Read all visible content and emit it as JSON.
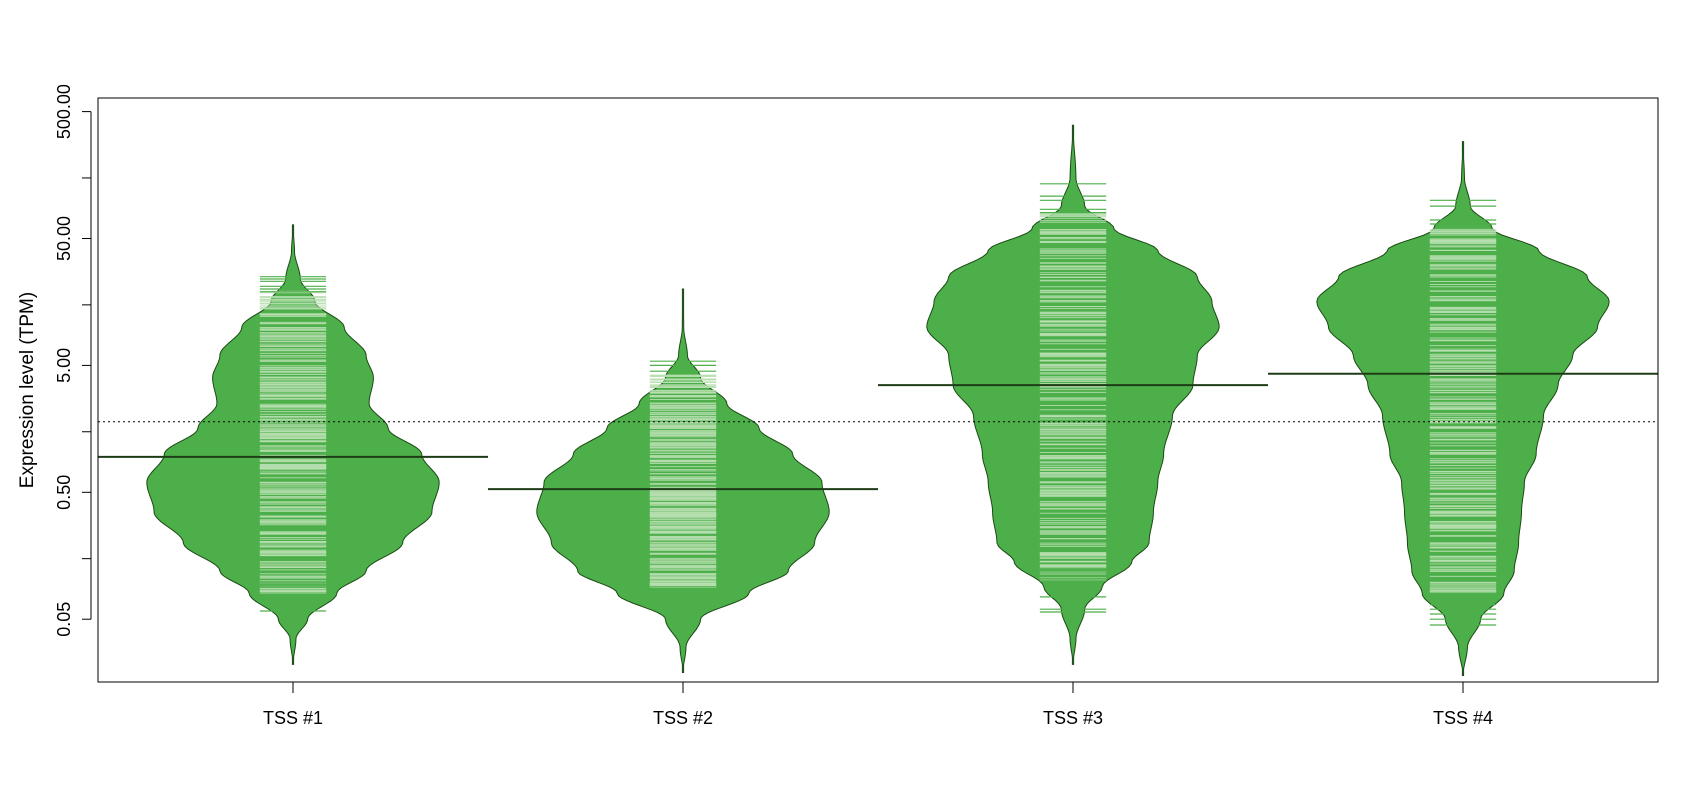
{
  "chart_data": {
    "type": "beanplot",
    "title": "",
    "xlabel": "",
    "ylabel": "Expression level (TPM)",
    "y_scale": "log10",
    "ylim": [
      0.016,
      640
    ],
    "y_ticks": [
      0.05,
      0.5,
      5,
      50,
      500
    ],
    "y_tick_labels": [
      "0.05",
      "0.50",
      "5.00",
      "50.00",
      "500.00"
    ],
    "y_minor_ticks": [
      0.15,
      1.5,
      15,
      150
    ],
    "overall_reference_line": 1.8,
    "categories": [
      "TSS #1",
      "TSS #2",
      "TSS #3",
      "TSS #4"
    ],
    "series": [
      {
        "category": "TSS #1",
        "median": 0.95,
        "min": 0.022,
        "max": 64,
        "density_profile": [
          [
            0.022,
            0
          ],
          [
            0.035,
            0.02
          ],
          [
            0.05,
            0.1
          ],
          [
            0.08,
            0.3
          ],
          [
            0.12,
            0.5
          ],
          [
            0.2,
            0.75
          ],
          [
            0.35,
            0.95
          ],
          [
            0.6,
            1.0
          ],
          [
            1.0,
            0.88
          ],
          [
            1.6,
            0.65
          ],
          [
            2.5,
            0.52
          ],
          [
            4.0,
            0.55
          ],
          [
            6.0,
            0.5
          ],
          [
            10,
            0.35
          ],
          [
            16,
            0.15
          ],
          [
            24,
            0.05
          ],
          [
            40,
            0.01
          ],
          [
            64,
            0
          ]
        ],
        "dense_range": [
          0.08,
          20
        ],
        "tail_points": [
          0.058,
          0.09,
          0.095,
          19,
          20,
          21,
          23,
          24,
          25
        ]
      },
      {
        "category": "TSS #2",
        "median": 0.53,
        "min": 0.019,
        "max": 20,
        "density_profile": [
          [
            0.019,
            0
          ],
          [
            0.03,
            0.02
          ],
          [
            0.05,
            0.12
          ],
          [
            0.08,
            0.45
          ],
          [
            0.12,
            0.72
          ],
          [
            0.2,
            0.9
          ],
          [
            0.35,
            1.0
          ],
          [
            0.6,
            0.95
          ],
          [
            1.0,
            0.75
          ],
          [
            1.6,
            0.52
          ],
          [
            2.5,
            0.3
          ],
          [
            4.0,
            0.12
          ],
          [
            6.0,
            0.03
          ],
          [
            10,
            0.005
          ],
          [
            20,
            0
          ]
        ],
        "dense_range": [
          0.085,
          4.2
        ],
        "tail_points": [
          0.068,
          0.082,
          0.09,
          4.5,
          5.0,
          5.4
        ]
      },
      {
        "category": "TSS #3",
        "median": 3.5,
        "min": 0.022,
        "max": 390,
        "density_profile": [
          [
            0.022,
            0
          ],
          [
            0.035,
            0.02
          ],
          [
            0.06,
            0.08
          ],
          [
            0.09,
            0.2
          ],
          [
            0.14,
            0.4
          ],
          [
            0.2,
            0.52
          ],
          [
            0.35,
            0.55
          ],
          [
            0.6,
            0.58
          ],
          [
            1.0,
            0.62
          ],
          [
            2.0,
            0.68
          ],
          [
            3.5,
            0.82
          ],
          [
            6.0,
            0.85
          ],
          [
            10,
            1.0
          ],
          [
            16,
            0.95
          ],
          [
            25,
            0.85
          ],
          [
            40,
            0.58
          ],
          [
            60,
            0.28
          ],
          [
            90,
            0.08
          ],
          [
            150,
            0.02
          ],
          [
            390,
            0
          ]
        ],
        "dense_range": [
          0.1,
          80
        ],
        "tail_points": [
          0.057,
          0.06,
          0.075,
          0.1,
          0.105,
          0.12,
          0.125,
          80,
          85,
          100,
          108,
          135
        ]
      },
      {
        "category": "TSS #4",
        "median": 4.3,
        "min": 0.018,
        "max": 290,
        "density_profile": [
          [
            0.018,
            0
          ],
          [
            0.03,
            0.03
          ],
          [
            0.05,
            0.12
          ],
          [
            0.08,
            0.28
          ],
          [
            0.12,
            0.35
          ],
          [
            0.2,
            0.38
          ],
          [
            0.35,
            0.4
          ],
          [
            0.6,
            0.42
          ],
          [
            1.0,
            0.5
          ],
          [
            2.0,
            0.55
          ],
          [
            3.5,
            0.65
          ],
          [
            6.0,
            0.75
          ],
          [
            10,
            0.92
          ],
          [
            16,
            1.0
          ],
          [
            25,
            0.85
          ],
          [
            40,
            0.52
          ],
          [
            60,
            0.2
          ],
          [
            90,
            0.05
          ],
          [
            150,
            0.01
          ],
          [
            290,
            0
          ]
        ],
        "dense_range": [
          0.08,
          60
        ],
        "tail_points": [
          0.045,
          0.05,
          0.055,
          0.06,
          0.065,
          0.07,
          0.075,
          0.08,
          65,
          70,
          90,
          100
        ]
      }
    ],
    "colors": {
      "bean_fill": "#4daf4a",
      "bean_outline": "#1a4a14",
      "inner_line": "#b7dfb0",
      "tail_line": "#4daf4a",
      "median_line": "#1e3d17",
      "reference_line": "#000000"
    }
  }
}
